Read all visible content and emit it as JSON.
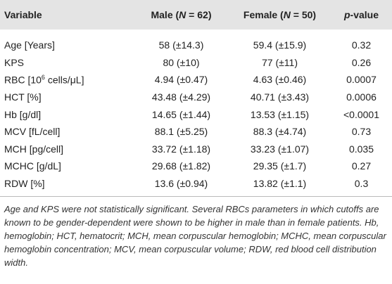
{
  "table": {
    "header": {
      "variable": "Variable",
      "male": [
        "Male (",
        "N",
        " = 62)"
      ],
      "female": [
        "Female (",
        "N",
        " = 50)"
      ],
      "p": [
        "p",
        "-value"
      ]
    },
    "rows": [
      [
        "Age [Years]",
        "58 (±14.3)",
        "59.4 (±15.9)",
        "0.32"
      ],
      [
        "KPS",
        "80 (±10)",
        "77 (±11)",
        "0.26"
      ],
      [
        [
          "RBC [10",
          "6",
          " cells/μL]"
        ],
        "4.94 (±0.47)",
        "4.63 (±0.46)",
        "0.0007"
      ],
      [
        "HCT [%]",
        "43.48 (±4.29)",
        "40.71 (±3.43)",
        "0.0006"
      ],
      [
        "Hb [g/dl]",
        "14.65 (±1.44)",
        "13.53 (±1.15)",
        "<0.0001"
      ],
      [
        "MCV [fL/cell]",
        "88.1 (±5.25)",
        "88.3 (±4.74)",
        "0.73"
      ],
      [
        "MCH [pg/cell]",
        "33.72 (±1.18)",
        "33.23 (±1.07)",
        "0.035"
      ],
      [
        "MCHC [g/dL]",
        "29.68 (±1.82)",
        "29.35 (±1.7)",
        "0.27"
      ],
      [
        "RDW [%]",
        "13.6 (±0.94)",
        "13.82 (±1.1)",
        "0.3"
      ]
    ]
  },
  "caption": "Age and KPS were not statistically significant. Several RBCs parameters in which cutoffs are known to be gender-dependent were shown to be higher in male than in female patients. Hb, hemoglobin; HCT, hematocrit; MCH, mean corpuscular hemoglobin; MCHC, mean corpuscular hemoglobin concentration; MCV, mean corpuscular volume; RDW, red blood cell distribution width."
}
